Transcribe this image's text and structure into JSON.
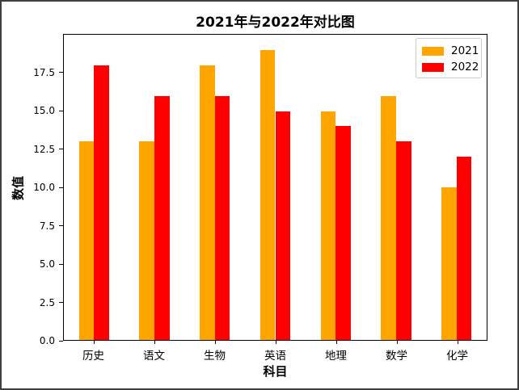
{
  "chart_data": {
    "type": "bar",
    "title": "2021年与2022年对比图",
    "xlabel": "科目",
    "ylabel": "数值",
    "categories": [
      "历史",
      "语文",
      "生物",
      "英语",
      "地理",
      "数学",
      "化学"
    ],
    "series": [
      {
        "name": "2021",
        "color": "#FFA500",
        "values": [
          13,
          13,
          18,
          19,
          15,
          16,
          10
        ]
      },
      {
        "name": "2022",
        "color": "#FF0000",
        "values": [
          18,
          16,
          16,
          15,
          14,
          13,
          12
        ]
      }
    ],
    "ylim": [
      0,
      20
    ],
    "yticks": [
      0.0,
      2.5,
      5.0,
      7.5,
      10.0,
      12.5,
      15.0,
      17.5
    ],
    "ytick_labels": [
      "0.0",
      "2.5",
      "5.0",
      "7.5",
      "10.0",
      "12.5",
      "15.0",
      "17.5"
    ],
    "grid": false,
    "legend_position": "upper right"
  }
}
